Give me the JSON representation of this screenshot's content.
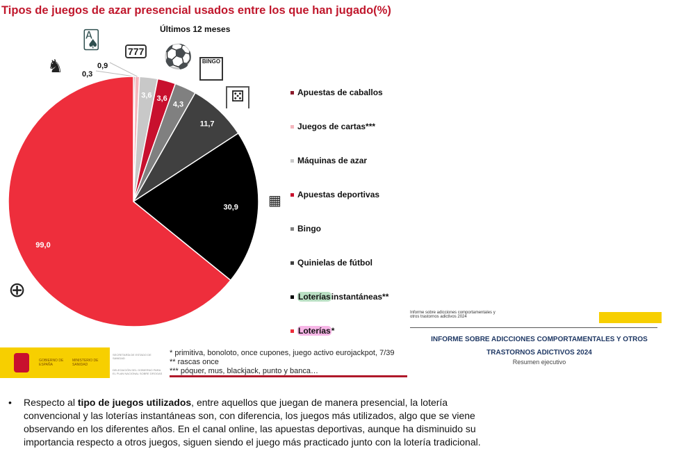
{
  "chart_data": {
    "type": "pie",
    "title": "Tipos de juegos de azar presencial usados entre los que han jugado(%)",
    "subtitle": "Últimos 12 meses",
    "categories": [
      "Apuestas de caballos",
      "Juegos de cartas***",
      "Máquinas de azar",
      "Apuestas deportivas",
      "Bingo",
      "Quinielas de fútbol",
      "Loterías instantáneas**",
      "Loterías*"
    ],
    "values": [
      0.3,
      0.9,
      3.6,
      3.6,
      4.3,
      11.7,
      30.9,
      99.0
    ],
    "data_labels": [
      "0,3",
      "0,9",
      "3,6",
      "3,6",
      "4,3",
      "11,7",
      "30,9",
      "99,0"
    ],
    "colors": [
      "#8b1a2b",
      "#f4b6bd",
      "#c8c8c8",
      "#c8102e",
      "#808080",
      "#404040",
      "#000000",
      "#ee2e3c"
    ],
    "legend_placement": "right",
    "icons": [
      "horse-money-icon",
      "playing-cards-icon",
      "slot-machine-icon",
      "soccer-ball-icon",
      "bingo-card-icon",
      "quiniela-icon",
      "scratch-card-icon",
      "lottery-drum-icon"
    ]
  },
  "legend_parts": {
    "lot_inst_a": "Loterías",
    "lot_inst_b": " instantáneas**",
    "lot_a": "Loterías",
    "lot_b": "*"
  },
  "footer": {
    "gov1": "GOBIERNO DE ESPAÑA",
    "gov2": "MINISTERIO DE SANIDAD",
    "sec": "SECRETARÍA DE ESTADO DE SANIDAD",
    "del": "DELEGACIÓN DEL GOBIERNO PARA EL PLAN NACIONAL SOBRE DROGAS",
    "notes": [
      "* primitiva, bonoloto, once cupones, juego activo eurojackpot, 7/39",
      "** rascas once",
      "*** póquer, mus,  blackjack, punto y banca…"
    ]
  },
  "report": {
    "small": "Informe sobre adicciones comportamentales y otros trastornos adictivos 2024",
    "title1": "INFORME SOBRE ADICCIONES COMPORTAMENTALES Y OTROS",
    "title2": "TRASTORNOS ADICTIVOS 2024",
    "subtitle": "Resumen ejecutivo"
  },
  "bullet": {
    "pre": "Respecto al ",
    "bold": "tipo de juegos utilizados",
    "post": ", entre aquellos que juegan de manera presencial, la lotería convencional y las loterías instantáneas son, con diferencia, los juegos más utilizados, algo que se viene observando en los diferentes años. En el canal online, las apuestas deportivas, aunque ha disminuido su importancia respecto a otros juegos, siguen siendo el juego más practicado junto con la lotería tradicional."
  }
}
